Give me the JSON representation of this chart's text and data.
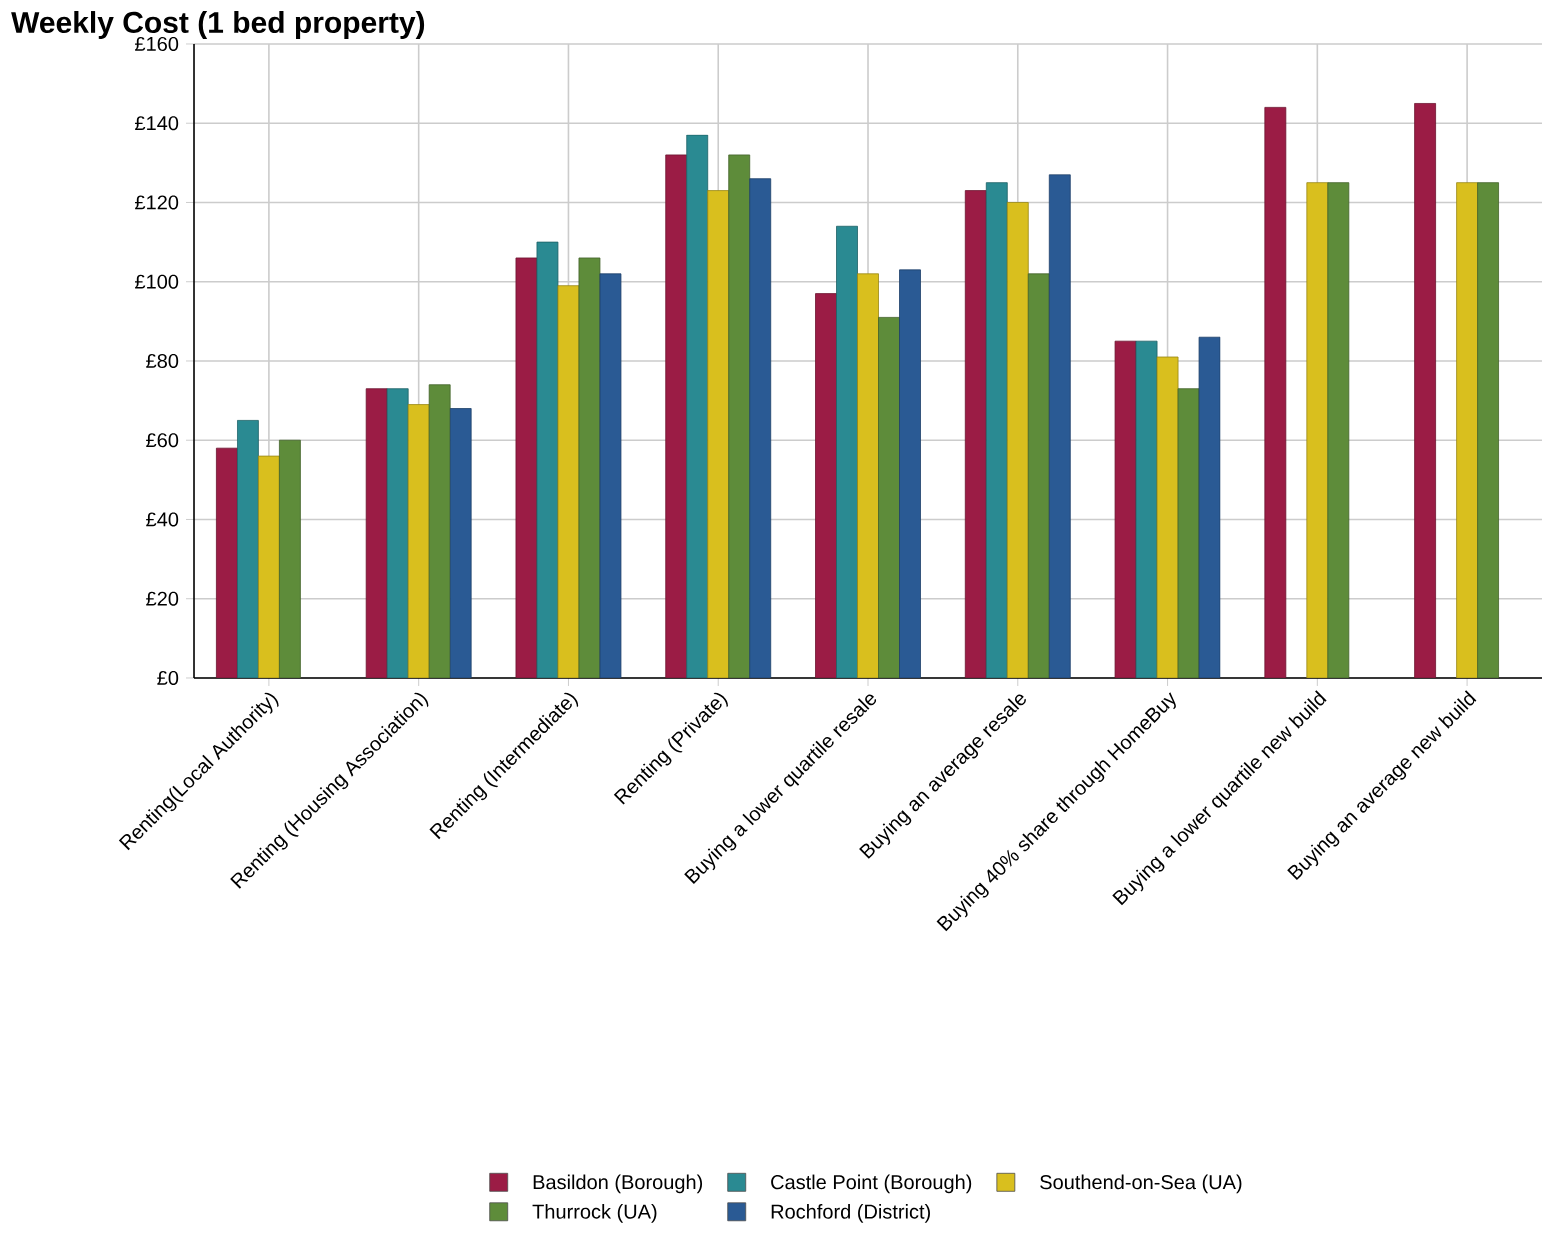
{
  "chart_data": {
    "type": "bar",
    "title": "Weekly Cost (1 bed property)",
    "categories": [
      "Renting(Local Authority)",
      "Renting (Housing Association)",
      "Renting (Intermediate)",
      "Renting (Private)",
      "Buying a lower quartile resale",
      "Buying an average resale",
      "Buying 40% share through HomeBuy",
      "Buying a lower quartile new build",
      "Buying an average new build"
    ],
    "series": [
      {
        "name": "Basildon (Borough)",
        "color": "#9b1c45",
        "values": [
          58,
          73,
          106,
          132,
          97,
          123,
          85,
          144,
          145
        ]
      },
      {
        "name": "Castle Point (Borough)",
        "color": "#2a8a92",
        "values": [
          65,
          73,
          110,
          137,
          114,
          125,
          85,
          null,
          null
        ]
      },
      {
        "name": "Southend-on-Sea (UA)",
        "color": "#d9bf1e",
        "values": [
          56,
          69,
          99,
          123,
          102,
          120,
          81,
          125,
          125
        ]
      },
      {
        "name": "Thurrock (UA)",
        "color": "#5e8c3a",
        "values": [
          60,
          74,
          106,
          132,
          91,
          102,
          73,
          125,
          125
        ]
      },
      {
        "name": "Rochford (District)",
        "color": "#2a5a94",
        "values": [
          null,
          68,
          102,
          126,
          103,
          127,
          86,
          null,
          null
        ]
      }
    ],
    "ylim": [
      0,
      160
    ],
    "yticks": [
      {
        "value": 0,
        "label": "£0"
      },
      {
        "value": 20,
        "label": "£20"
      },
      {
        "value": 40,
        "label": "£40"
      },
      {
        "value": 60,
        "label": "£60"
      },
      {
        "value": 80,
        "label": "£80"
      },
      {
        "value": 100,
        "label": "£100"
      },
      {
        "value": 120,
        "label": "£120"
      },
      {
        "value": 140,
        "label": "£140"
      },
      {
        "value": 160,
        "label": "£160"
      }
    ],
    "grid": true,
    "legend": "bottom"
  }
}
